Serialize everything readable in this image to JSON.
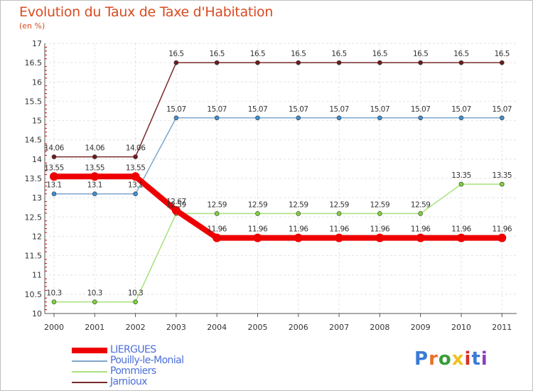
{
  "title": "Evolution du Taux de Taxe d'Habitation",
  "subtitle": "(en %)",
  "logo": {
    "text": "Proxiti",
    "letters": [
      "P",
      "r",
      "o",
      "x",
      "i",
      "t",
      "i"
    ],
    "colors": [
      "#3a7bd5",
      "#e8702a",
      "#3a9d3a",
      "#f0c020",
      "#d62f2f",
      "#3a7bd5",
      "#8a3ec0"
    ]
  },
  "chart_data": {
    "type": "line",
    "categories": [
      "2000",
      "2001",
      "2002",
      "2003",
      "2004",
      "2005",
      "2006",
      "2007",
      "2008",
      "2009",
      "2010",
      "2011"
    ],
    "ylim": [
      10,
      17
    ],
    "yticks": [
      "10",
      "10.5",
      "11",
      "11.5",
      "12",
      "12.5",
      "13",
      "13.5",
      "14",
      "14.5",
      "15",
      "15.5",
      "16",
      "16.5",
      "17"
    ],
    "grid": true,
    "legend_position": "bottom-left",
    "series": [
      {
        "name": "Jarnioux",
        "color": "#6e1c1c",
        "line_color": "#7a2b2b",
        "values": [
          14.06,
          14.06,
          14.06,
          16.5,
          16.5,
          16.5,
          16.5,
          16.5,
          16.5,
          16.5,
          16.5,
          16.5
        ],
        "labels": [
          "14.06",
          "14.06",
          "14.06",
          "16.5",
          "16.5",
          "16.5",
          "16.5",
          "16.5",
          "16.5",
          "16.5",
          "16.5",
          "16.5"
        ]
      },
      {
        "name": "Pouilly-le-Monial",
        "color": "#3f8fd0",
        "line_color": "#7ea6cc",
        "values": [
          13.1,
          13.1,
          13.1,
          15.07,
          15.07,
          15.07,
          15.07,
          15.07,
          15.07,
          15.07,
          15.07,
          15.07
        ],
        "labels": [
          "13.1",
          "13.1",
          "13.1",
          "15.07",
          "15.07",
          "15.07",
          "15.07",
          "15.07",
          "15.07",
          "15.07",
          "15.07",
          "15.07"
        ]
      },
      {
        "name": "Pommiers",
        "color": "#7ed23c",
        "line_color": "#a8e07e",
        "values": [
          10.3,
          10.3,
          10.3,
          12.59,
          12.59,
          12.59,
          12.59,
          12.59,
          12.59,
          12.59,
          13.35,
          13.35
        ],
        "labels": [
          "10.3",
          "10.3",
          "10.3",
          "12.59",
          "12.59",
          "12.59",
          "12.59",
          "12.59",
          "12.59",
          "12.59",
          "13.35",
          "13.35"
        ]
      },
      {
        "name": "LIERGUES",
        "color": "#ee0000",
        "line_color": "#ee0000",
        "values": [
          13.55,
          13.55,
          13.55,
          12.67,
          11.96,
          11.96,
          11.96,
          11.96,
          11.96,
          11.96,
          11.96,
          11.96
        ],
        "labels": [
          "13.55",
          "13.55",
          "13.55",
          "12.67",
          "11.96",
          "11.96",
          "11.96",
          "11.96",
          "11.96",
          "11.96",
          "11.96",
          "11.96"
        ]
      }
    ]
  }
}
